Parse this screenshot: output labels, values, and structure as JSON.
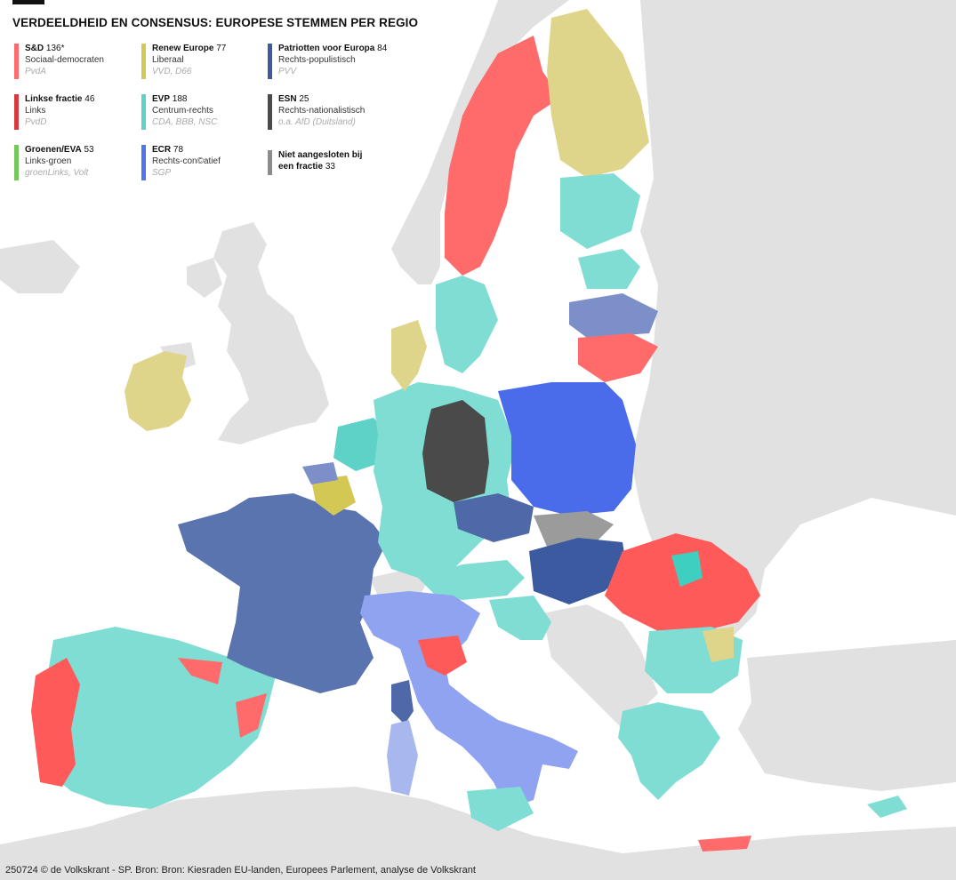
{
  "title": "VERDEELDHEID EN CONSENSUS: EUROPESE STEMMEN PER REGIO",
  "legend": [
    {
      "name": "S&D",
      "count": "136*",
      "desc": "Sociaal-democraten",
      "parties": "PvdA",
      "color": "#ff6b6b"
    },
    {
      "name": "Linkse fractie",
      "count": "46",
      "desc": "Links",
      "parties": "PvdD",
      "color": "#d63a3e"
    },
    {
      "name": "Groenen/EVA",
      "count": "53",
      "desc": "Links-groen",
      "parties": "groenLinks, Volt",
      "color": "#72c85a"
    },
    {
      "name": "Renew Europe",
      "count": "77",
      "desc": "Liberaal",
      "parties": "VVD, D66",
      "color": "#d4c855"
    },
    {
      "name": "EVP",
      "count": "188",
      "desc": "Centrum-rechts",
      "parties": "CDA, BBB, NSC",
      "color": "#5ed2c6"
    },
    {
      "name": "ECR",
      "count": "78",
      "desc": "Rechts-con©atief",
      "parties": "SGP",
      "color": "#4f74f0"
    },
    {
      "name": "Patriotten voor Europa",
      "count": "84",
      "desc": "Rechts-populistisch",
      "parties": "PVV",
      "color": "#3c5aa0"
    },
    {
      "name": "ESN",
      "count": "25",
      "desc": "Rechts-nationalistisch",
      "parties": "o.a. AfD (Duitsland)",
      "color": "#4a4a4a"
    },
    {
      "name": "Niet aangesloten bij een fractie",
      "count": "33",
      "desc": "",
      "parties": "",
      "color": "#8c8c8c"
    }
  ],
  "footer": "250724 © de Volkskrant - SP. Bron:  Bron: Kiesraden EU-landen, Europees Parlement, analyse de Volkskrant",
  "colors": {
    "sea": "#ffffff",
    "non_eu_land": "#e0e0e0"
  }
}
